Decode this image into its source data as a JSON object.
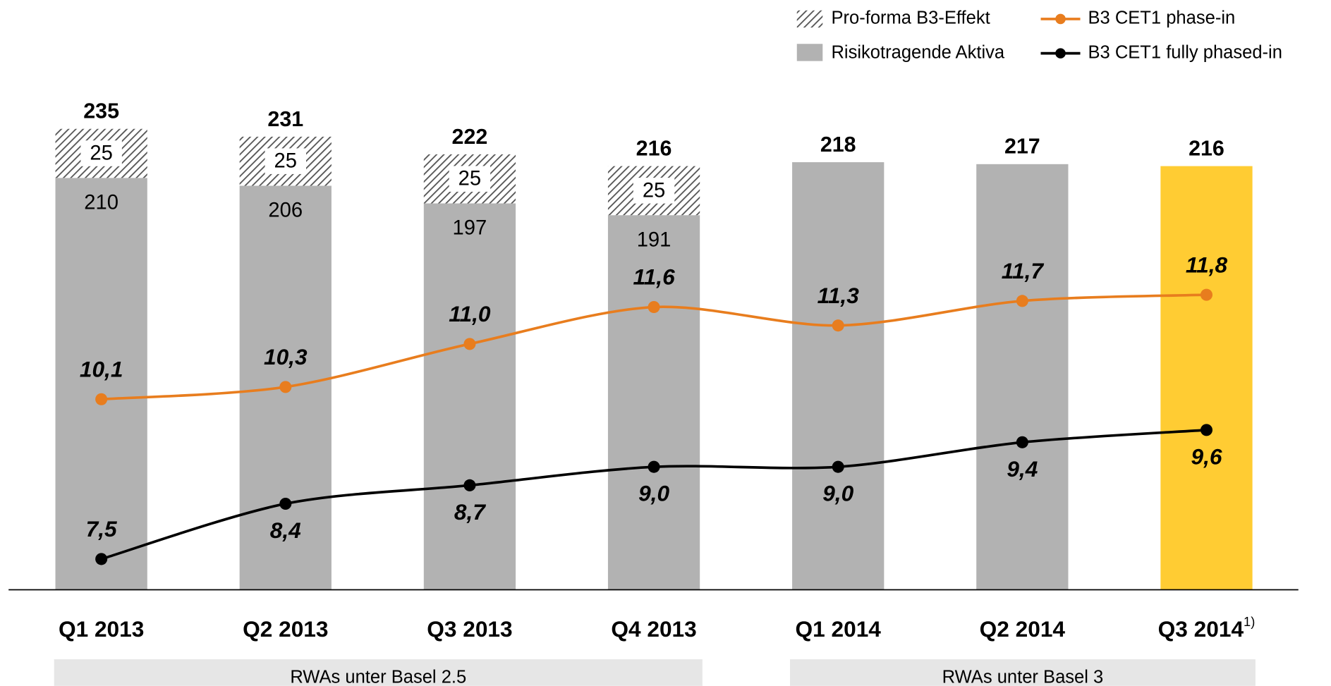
{
  "chart_data": {
    "type": "bar-line",
    "categories": [
      "Q1 2013",
      "Q2 2013",
      "Q3 2013",
      "Q4 2013",
      "Q1 2014",
      "Q2 2014",
      "Q3 2014"
    ],
    "footnote_marker": "1)",
    "ylim": [
      0,
      235
    ],
    "y2lim": [
      7,
      14.5
    ],
    "series": [
      {
        "name": "Risikotragende Aktiva",
        "kind": "bar",
        "color": "#b2b2b2",
        "colors": [
          "#b2b2b2",
          "#b2b2b2",
          "#b2b2b2",
          "#b2b2b2",
          "#b2b2b2",
          "#b2b2b2",
          "#ffcc33"
        ],
        "values": [
          210,
          206,
          197,
          191,
          218,
          217,
          216
        ]
      },
      {
        "name": "Pro-forma B3-Effekt",
        "kind": "bar",
        "pattern": "hatch",
        "color": "#555555",
        "values": [
          25,
          25,
          25,
          25,
          null,
          null,
          null
        ]
      },
      {
        "name": "B3 CET1 phase-in",
        "kind": "line",
        "axis": "y2",
        "color": "#e87d1e",
        "values": [
          10.1,
          10.3,
          11.0,
          11.6,
          11.3,
          11.7,
          11.8
        ],
        "value_labels": [
          "10,1",
          "10,3",
          "11,0",
          "11,6",
          "11,3",
          "11,7",
          "11,8"
        ]
      },
      {
        "name": "B3 CET1 fully phased-in",
        "kind": "line",
        "axis": "y2",
        "color": "#000000",
        "values": [
          7.5,
          8.4,
          8.7,
          9.0,
          9.0,
          9.4,
          9.6
        ],
        "value_labels": [
          "7,5",
          "8,4",
          "8,7",
          "9,0",
          "9,0",
          "9,4",
          "9,6"
        ]
      }
    ],
    "totals": [
      235,
      231,
      222,
      216,
      218,
      217,
      216
    ],
    "groups": [
      "RWAs unter Basel 2.5",
      "RWAs unter Basel 3"
    ]
  }
}
